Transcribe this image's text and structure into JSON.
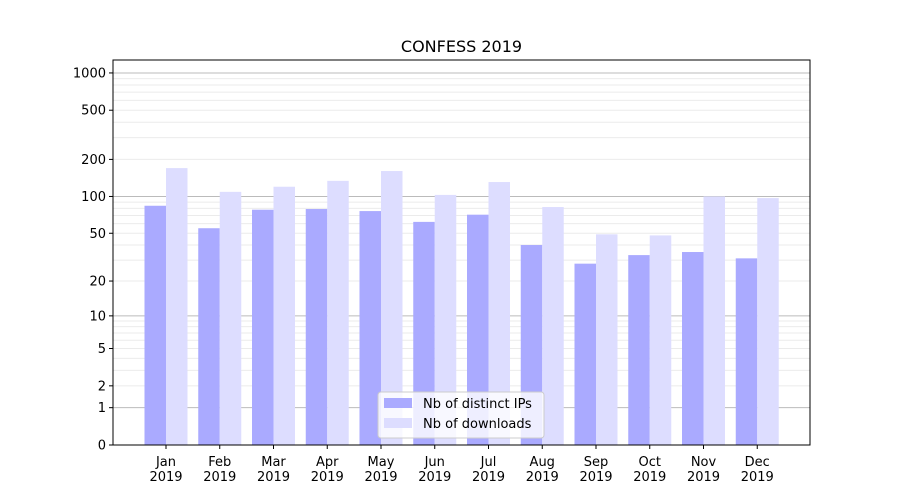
{
  "chart_data": {
    "type": "bar",
    "title": "CONFESS 2019",
    "xlabel": "",
    "ylabel": "",
    "yscale": "log10(1+y)",
    "ylim": [
      0,
      1270
    ],
    "yticks": [
      0,
      1,
      2,
      5,
      10,
      20,
      50,
      100,
      200,
      500,
      1000
    ],
    "grid": true,
    "legend_placement": "lower-center",
    "categories": [
      "Jan\n2019",
      "Feb\n2019",
      "Mar\n2019",
      "Apr\n2019",
      "May\n2019",
      "Jun\n2019",
      "Jul\n2019",
      "Aug\n2019",
      "Sep\n2019",
      "Oct\n2019",
      "Nov\n2019",
      "Dec\n2019"
    ],
    "series": [
      {
        "name": "Nb of distinct IPs",
        "color": "#aaaaff",
        "values": [
          84,
          55,
          78,
          79,
          76,
          62,
          71,
          40,
          28,
          33,
          35,
          31
        ]
      },
      {
        "name": "Nb of downloads",
        "color": "#ddddff",
        "values": [
          170,
          109,
          120,
          134,
          161,
          103,
          131,
          82,
          49,
          48,
          100,
          97
        ]
      }
    ]
  }
}
